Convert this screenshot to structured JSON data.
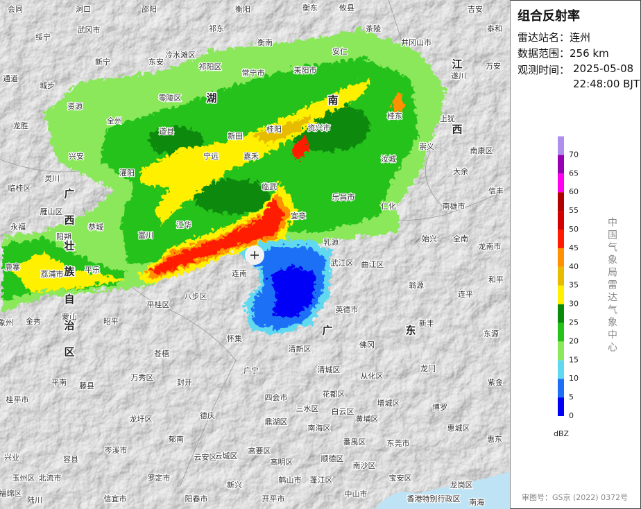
{
  "panel": {
    "title": "组合反射率",
    "station_label": "雷达站名：",
    "station": "连州",
    "range_label": "数据范围：",
    "range": "256 km",
    "time_label": "观测时间：",
    "date": "2025-05-08",
    "time": "22:48:00 BJT",
    "unit": "dBZ",
    "legend": [
      {
        "value": 0,
        "color": "#0000f6"
      },
      {
        "value": 5,
        "color": "#1e6ff6"
      },
      {
        "value": 10,
        "color": "#5fd8f0"
      },
      {
        "value": 15,
        "color": "#8ae85a"
      },
      {
        "value": 20,
        "color": "#25c21a"
      },
      {
        "value": 25,
        "color": "#0a8a0a"
      },
      {
        "value": 30,
        "color": "#fff000"
      },
      {
        "value": 35,
        "color": "#e6bb00"
      },
      {
        "value": 40,
        "color": "#ff9000"
      },
      {
        "value": 45,
        "color": "#ff1a00"
      },
      {
        "value": 50,
        "color": "#d40000"
      },
      {
        "value": 55,
        "color": "#b00000"
      },
      {
        "value": 60,
        "color": "#ff00f0"
      },
      {
        "value": 65,
        "color": "#9600b4"
      },
      {
        "value": 70,
        "color": "#ae90ec"
      }
    ],
    "agency": "中国气象局雷达气象中心",
    "footer": "审图号：GS京 (2022) 0372号"
  },
  "map": {
    "places": [
      "会同",
      "洞口",
      "邵阳",
      "衡阳",
      "衡东",
      "攸县",
      "吉安",
      "绥宁",
      "武冈市",
      "祁东",
      "茶陵",
      "泰和",
      "衡南",
      "井冈山市",
      "安仁",
      "新宁",
      "东安",
      "冷水滩区",
      "祁阳区",
      "万安",
      "耒阳市",
      "常宁市",
      "遂川",
      "通道",
      "城步",
      "零陵区",
      "资源",
      "资兴市",
      "上犹",
      "桂东",
      "全州",
      "龙胜",
      "道县",
      "桂阳",
      "新田",
      "崇义",
      "南康区",
      "兴安",
      "宁远",
      "嘉禾",
      "汝城",
      "大余",
      "灌阳",
      "灵川",
      "临武",
      "临桂区",
      "信丰",
      "乐昌市",
      "仁化",
      "南雄市",
      "雁山区",
      "宜章",
      "江华",
      "永福",
      "恭城",
      "富川",
      "阳朔",
      "始兴",
      "全南",
      "乳源",
      "龙南市",
      "鹿寨",
      "武江区",
      "曲江区",
      "平乐",
      "连南",
      "荔浦市",
      "和平",
      "翁源",
      "八步区",
      "连平",
      "平桂区",
      "英德市",
      "蒙山",
      "昭平",
      "金秀",
      "象州",
      "新丰",
      "东源",
      "怀集",
      "佛冈",
      "清新区",
      "苍梧",
      "龙门",
      "清城区",
      "广宁",
      "从化区",
      "万秀区",
      "平南",
      "封开",
      "紫金",
      "藤县",
      "花都区",
      "四会市",
      "桂平市",
      "增城区",
      "博罗",
      "三水区",
      "白云区",
      "德庆",
      "龙圩区",
      "黄埔区",
      "鼎湖区",
      "南海区",
      "惠城区",
      "郁南",
      "惠东",
      "番禺区",
      "东莞市",
      "岑溪市",
      "高要区",
      "云城区",
      "云安区",
      "兴业",
      "顺德区",
      "容县",
      "高明区",
      "南沙区",
      "玉州区",
      "北流市",
      "罗定市",
      "鹤山市",
      "蓬江区",
      "新兴",
      "宝安区",
      "龙岗区",
      "中山市",
      "福绵区",
      "开平市",
      "阳春市",
      "信宜市",
      "陆川",
      "香港特别行政区",
      "南海"
    ],
    "regions": [
      "湖",
      "南",
      "江",
      "西",
      "广",
      "西",
      "壮",
      "族",
      "自",
      "治",
      "区",
      "广",
      "东"
    ]
  }
}
